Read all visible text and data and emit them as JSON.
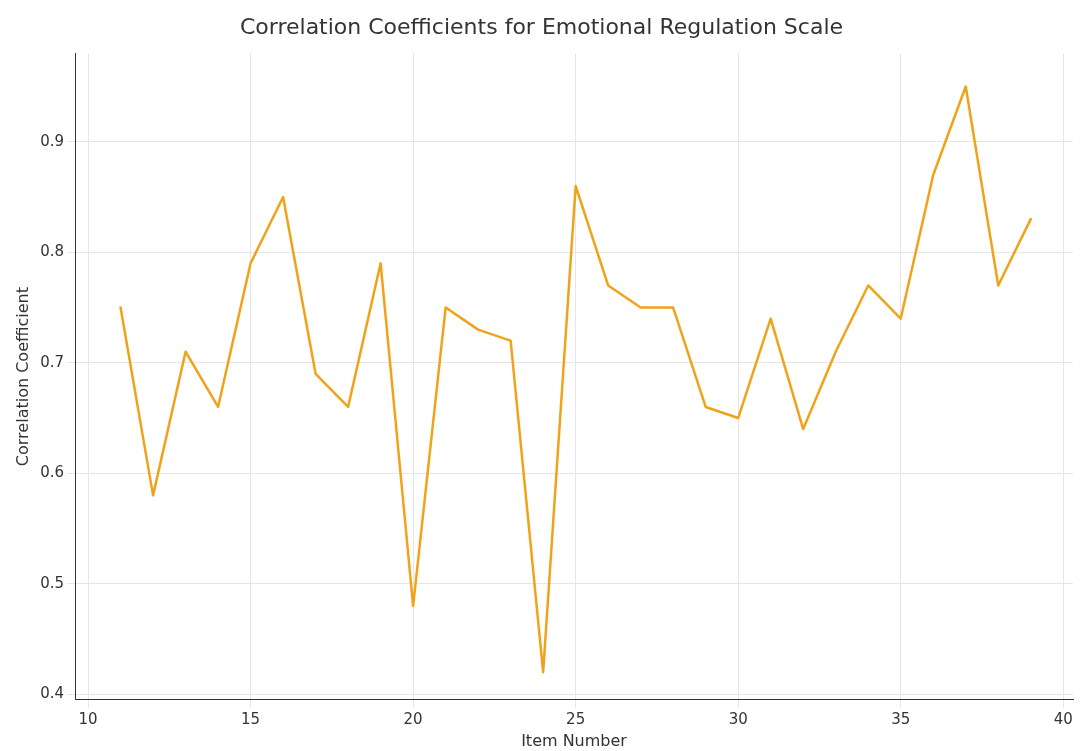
{
  "chart_data": {
    "type": "line",
    "title": "Correlation Coefficients for Emotional Regulation Scale",
    "xlabel": "Item Number",
    "ylabel": "Correlation Coefficient",
    "x": [
      11,
      12,
      13,
      14,
      15,
      16,
      17,
      18,
      19,
      20,
      21,
      22,
      23,
      24,
      25,
      26,
      27,
      28,
      29,
      30,
      31,
      32,
      33,
      34,
      35,
      36,
      37,
      38,
      39
    ],
    "series": [
      {
        "color": "#f0a31a",
        "values": [
          0.75,
          0.58,
          0.71,
          0.66,
          0.79,
          0.85,
          0.69,
          0.66,
          0.79,
          0.48,
          0.75,
          0.73,
          0.72,
          0.42,
          0.86,
          0.77,
          0.75,
          0.75,
          0.66,
          0.65,
          0.74,
          0.64,
          0.71,
          0.77,
          0.74,
          0.87,
          0.95,
          0.77,
          0.83
        ]
      }
    ],
    "xlim": [
      9.6,
      40.3
    ],
    "xticks": [
      10,
      15,
      20,
      25,
      30,
      35,
      40
    ],
    "ylim": [
      0.395,
      0.98
    ],
    "yticks": [
      0.4,
      0.5,
      0.6,
      0.7,
      0.8,
      0.9
    ],
    "grid": true,
    "legend": false,
    "marker": "none",
    "line_style": "solid"
  }
}
